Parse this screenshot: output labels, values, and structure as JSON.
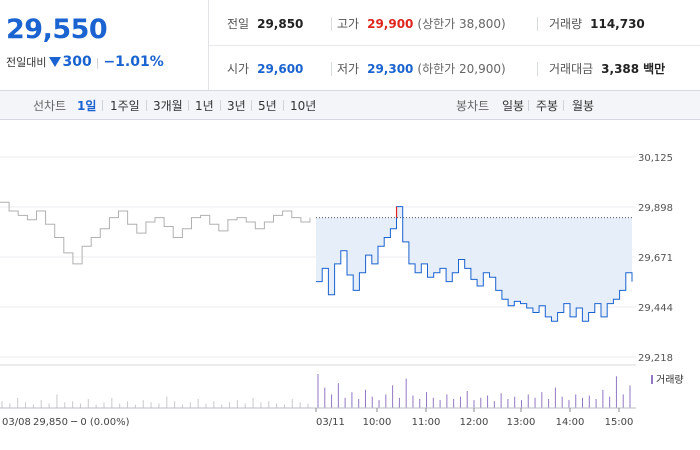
{
  "quote": {
    "price": "29,550",
    "change_label": "전일대비",
    "change_amount": "300",
    "change_pct": "−1.01%"
  },
  "stats": {
    "prev_close": {
      "label": "전일",
      "value": "29,850"
    },
    "high": {
      "label": "고가",
      "value": "29,900",
      "sub": "(상한가 38,800)"
    },
    "volume": {
      "label": "거래량",
      "value": "114,730"
    },
    "open": {
      "label": "시가",
      "value": "29,600"
    },
    "low": {
      "label": "저가",
      "value": "29,300",
      "sub": "(하한가 20,900)"
    },
    "turnover": {
      "label": "거래대금",
      "value": "3,388",
      "unit": "백만"
    }
  },
  "period_tabs": {
    "label": "선차트",
    "items": [
      "1일",
      "1주일",
      "3개월",
      "1년",
      "3년",
      "5년",
      "10년"
    ],
    "active": "1일"
  },
  "candle_tabs": {
    "label": "봉차트",
    "items": [
      "일봉",
      "주봉",
      "월봉"
    ]
  },
  "colors": {
    "up": "#e0251f",
    "down": "#1a63d0",
    "previous_day_line": "#b0b0b0",
    "today_fill": "#e5eef9",
    "volume_bar": "#9277c4"
  },
  "chart_data": {
    "type": "line",
    "y_ticks": [
      "30,125",
      "29,898",
      "29,671",
      "29,444",
      "29,218"
    ],
    "ylim": [
      29218,
      30125
    ],
    "reference_line": 29850,
    "x_tick_labels": [
      "03/11",
      "10:00",
      "11:00",
      "12:00",
      "13:00",
      "14:00",
      "15:00"
    ],
    "previous_day": {
      "date": "03/08",
      "summary": "29,850 ─ 0 (0.00%)",
      "values": [
        29920,
        29880,
        29860,
        29840,
        29880,
        29820,
        29760,
        29690,
        29640,
        29720,
        29760,
        29800,
        29850,
        29880,
        29820,
        29780,
        29830,
        29850,
        29810,
        29760,
        29800,
        29850,
        29860,
        29820,
        29790,
        29840,
        29850,
        29830,
        29800,
        29830,
        29860,
        29880,
        29850,
        29830,
        29850
      ]
    },
    "today": {
      "values": [
        29560,
        29620,
        29500,
        29640,
        29700,
        29590,
        29520,
        29600,
        29680,
        29640,
        29720,
        29760,
        29800,
        29900,
        29740,
        29640,
        29600,
        29640,
        29580,
        29600,
        29620,
        29560,
        29600,
        29660,
        29620,
        29570,
        29540,
        29600,
        29580,
        29520,
        29480,
        29450,
        29470,
        29460,
        29440,
        29420,
        29450,
        29400,
        29380,
        29420,
        29460,
        29400,
        29440,
        29380,
        29420,
        29460,
        29400,
        29460,
        29480,
        29520,
        29600,
        29560
      ]
    },
    "volume_legend": "거래량",
    "volume": {
      "previous_day": [
        6,
        4,
        9,
        5,
        3,
        7,
        4,
        12,
        5,
        6,
        4,
        8,
        3,
        5,
        9,
        4,
        6,
        3,
        7,
        5,
        4,
        10,
        6,
        3,
        5,
        8,
        4,
        6,
        3,
        5,
        7,
        4,
        9,
        5,
        6,
        4,
        3,
        8,
        5,
        4
      ],
      "today": [
        30,
        18,
        12,
        22,
        9,
        14,
        8,
        16,
        10,
        7,
        12,
        20,
        9,
        26,
        11,
        8,
        14,
        9,
        7,
        12,
        8,
        10,
        15,
        7,
        9,
        11,
        6,
        13,
        8,
        10,
        7,
        12,
        9,
        14,
        8,
        18,
        10,
        7,
        12,
        9,
        11,
        8,
        16,
        10,
        28,
        12,
        20
      ]
    }
  }
}
